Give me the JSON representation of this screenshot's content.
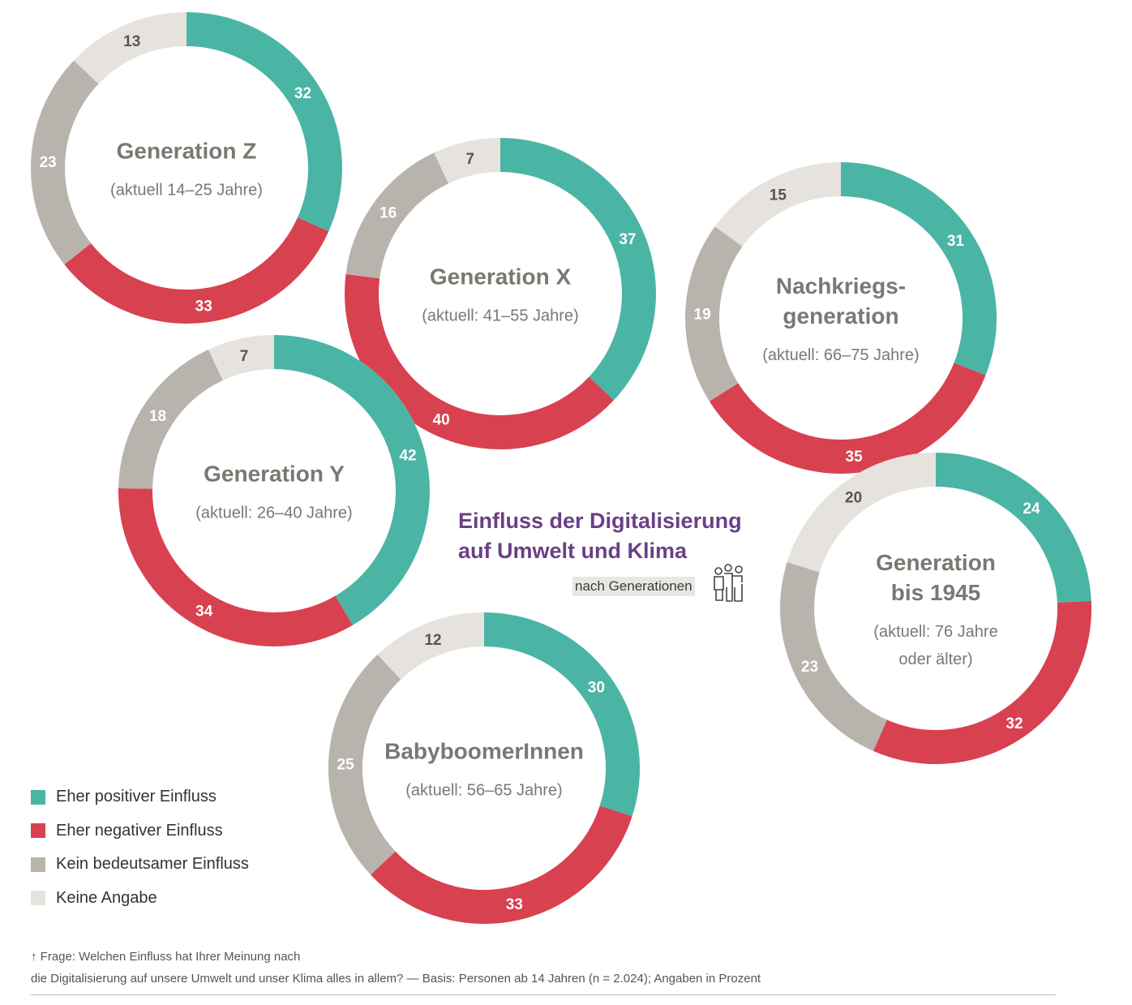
{
  "colors": {
    "positive": "#4bb5a5",
    "negative": "#d8414f",
    "none": "#b8b4ad",
    "na": "#e6e3df",
    "center_text": "#7b7872",
    "title": "#6b3f86"
  },
  "header": {
    "title_line1": "Einfluss der Digitalisierung",
    "title_line2": "auf Umwelt und Klima",
    "subtitle": "nach Generationen",
    "icon": "people-generations-icon"
  },
  "chart_data": {
    "type": "pie",
    "title": "Einfluss der Digitalisierung auf Umwelt und Klima – nach Generationen",
    "unit": "Prozent",
    "categories": [
      "Eher positiver Einfluss",
      "Eher negativer Einfluss",
      "Kein bedeutsamer Einfluss",
      "Keine Angabe"
    ],
    "series": [
      {
        "name": "Generation Z",
        "name_lines": [
          "Generation Z"
        ],
        "sub_lines": [
          "(aktuell 14–25 Jahre)"
        ],
        "values": [
          32,
          33,
          23,
          13
        ]
      },
      {
        "name": "Generation X",
        "name_lines": [
          "Generation X"
        ],
        "sub_lines": [
          "(aktuell: 41–55 Jahre)"
        ],
        "values": [
          37,
          40,
          16,
          7
        ]
      },
      {
        "name": "Generation Y",
        "name_lines": [
          "Generation Y"
        ],
        "sub_lines": [
          "(aktuell: 26–40 Jahre)"
        ],
        "values": [
          42,
          34,
          18,
          7
        ]
      },
      {
        "name": "Nachkriegsgeneration",
        "name_lines": [
          "Nachkriegs-",
          "generation"
        ],
        "sub_lines": [
          "(aktuell: 66–75 Jahre)"
        ],
        "values": [
          31,
          35,
          19,
          15
        ]
      },
      {
        "name": "Generation bis 1945",
        "name_lines": [
          "Generation",
          "bis 1945"
        ],
        "sub_lines": [
          "(aktuell: 76 Jahre",
          "oder älter)"
        ],
        "values": [
          24,
          32,
          23,
          20
        ]
      },
      {
        "name": "BabyboomerInnen",
        "name_lines": [
          "BabyboomerInnen"
        ],
        "sub_lines": [
          "(aktuell: 56–65 Jahre)"
        ],
        "values": [
          30,
          33,
          25,
          12
        ]
      }
    ]
  },
  "legend": [
    {
      "label": "Eher positiver Einfluss"
    },
    {
      "label": "Eher negativer Einfluss"
    },
    {
      "label": "Kein bedeutsamer Einfluss"
    },
    {
      "label": "Keine Angabe"
    }
  ],
  "footnote": {
    "line1": "↑ Frage: Welchen Einfluss hat Ihrer Meinung nach",
    "line2": "die Digitalisierung auf unsere Umwelt und unser Klima alles in allem? — Basis: Personen ab 14 Jahren (n = 2.024); Angaben in Prozent"
  }
}
